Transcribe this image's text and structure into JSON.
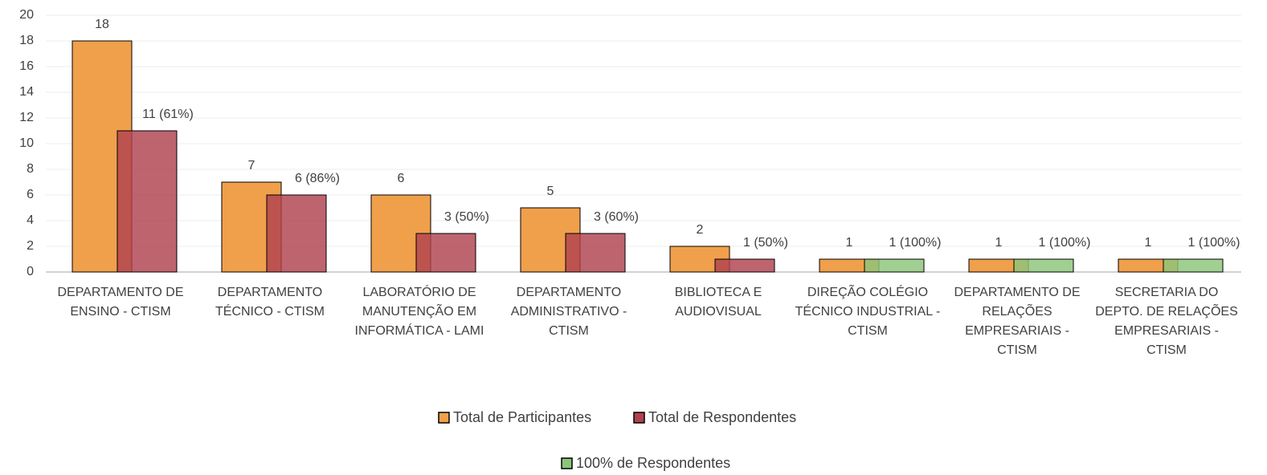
{
  "chart_data": {
    "type": "bar",
    "categories": [
      "DEPARTAMENTO DE ENSINO - CTISM",
      "DEPARTAMENTO TÉCNICO - CTISM",
      "LABORATÓRIO DE MANUTENÇÃO EM INFORMÁTICA - LAMI",
      "DEPARTAMENTO ADMINISTRATIVO - CTISM",
      "BIBLIOTECA E AUDIOVISUAL",
      "DIREÇÃO COLÉGIO TÉCNICO INDUSTRIAL - CTISM",
      "DEPARTAMENTO DE RELAÇÕES EMPRESARIAIS - CTISM",
      "SECRETARIA DO DEPTO. DE RELAÇÕES EMPRESARIAIS - CTISM"
    ],
    "series": [
      {
        "name": "Total de Participantes",
        "color": "#f0a04b",
        "values": [
          18,
          7,
          6,
          5,
          2,
          1,
          1,
          1
        ]
      },
      {
        "name": "Total de Respondentes",
        "color": "#b0424f",
        "values": [
          11,
          6,
          3,
          3,
          1,
          null,
          null,
          null
        ],
        "value_labels": [
          "11 (61%)",
          "6 (86%)",
          "3 (50%)",
          "3 (60%)",
          "1 (50%)",
          null,
          null,
          null
        ]
      },
      {
        "name": "100% de Respondentes",
        "color": "#8cc47a",
        "values": [
          null,
          null,
          null,
          null,
          null,
          1,
          1,
          1
        ],
        "value_labels": [
          null,
          null,
          null,
          null,
          null,
          "1 (100%)",
          "1 (100%)",
          "1 (100%)"
        ]
      }
    ],
    "ylim": [
      0,
      20
    ],
    "yticks": [
      0,
      2,
      4,
      6,
      8,
      10,
      12,
      14,
      16,
      18,
      20
    ],
    "grid": true
  }
}
